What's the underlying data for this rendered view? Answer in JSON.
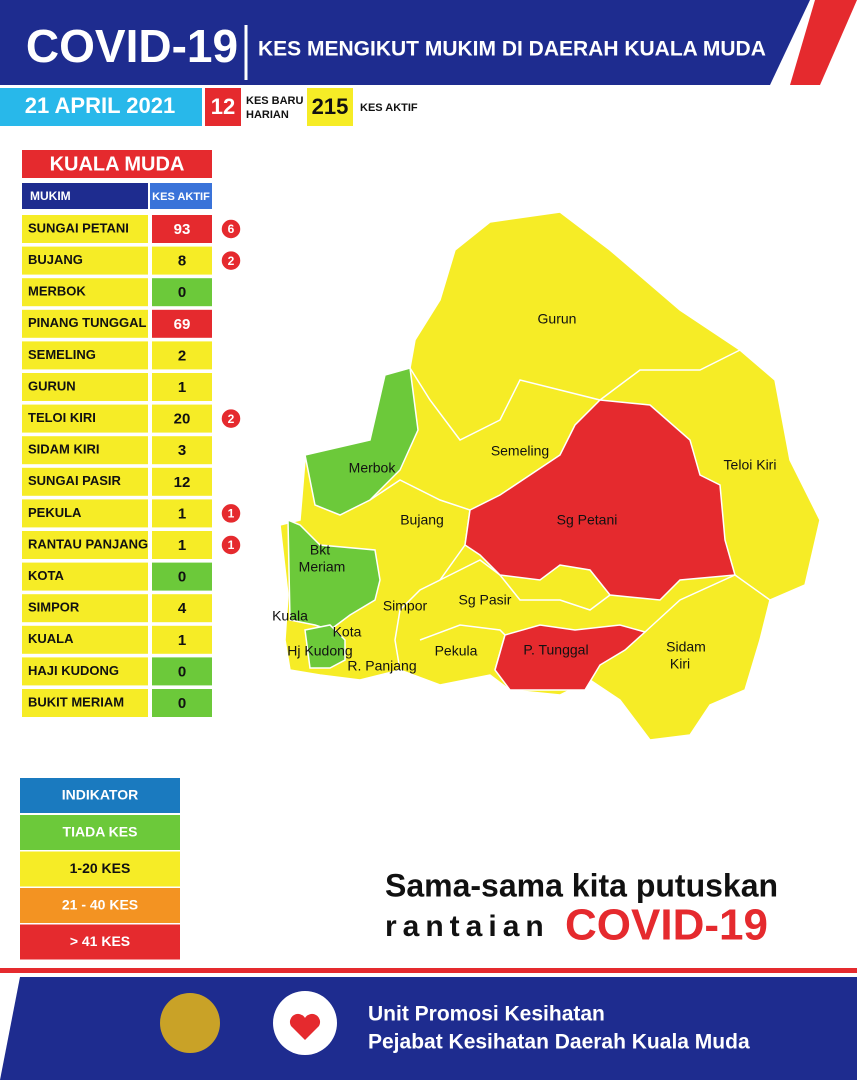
{
  "header": {
    "title": "COVID-19",
    "subtitle": "KES MENGIKUT MUKIM DI DAERAH KUALA MUDA",
    "date": "21 APRIL 2021",
    "new_cases": "12",
    "new_cases_label": [
      "KES BARU",
      "HARIAN"
    ],
    "active_cases": "215",
    "active_cases_label": "KES AKTIF"
  },
  "table": {
    "title": "KUALA MUDA",
    "columns": [
      "MUKIM",
      "KES AKTIF"
    ],
    "rows": [
      {
        "name": "SUNGAI PETANI",
        "active": "93",
        "color": "#e52a2e",
        "new": "6"
      },
      {
        "name": "BUJANG",
        "active": "8",
        "color": "#f6ec26",
        "new": "2"
      },
      {
        "name": "MERBOK",
        "active": "0",
        "color": "#6cc93a"
      },
      {
        "name": "PINANG TUNGGAL",
        "active": "69",
        "color": "#e52a2e"
      },
      {
        "name": "SEMELING",
        "active": "2",
        "color": "#f6ec26"
      },
      {
        "name": "GURUN",
        "active": "1",
        "color": "#f6ec26"
      },
      {
        "name": "TELOI KIRI",
        "active": "20",
        "color": "#f6ec26",
        "new": "2"
      },
      {
        "name": "SIDAM KIRI",
        "active": "3",
        "color": "#f6ec26"
      },
      {
        "name": "SUNGAI PASIR",
        "active": "12",
        "color": "#f6ec26"
      },
      {
        "name": "PEKULA",
        "active": "1",
        "color": "#f6ec26",
        "new": "1"
      },
      {
        "name": "RANTAU PANJANG",
        "active": "1",
        "color": "#f6ec26",
        "new": "1"
      },
      {
        "name": "KOTA",
        "active": "0",
        "color": "#6cc93a"
      },
      {
        "name": "SIMPOR",
        "active": "4",
        "color": "#f6ec26"
      },
      {
        "name": "KUALA",
        "active": "1",
        "color": "#f6ec26"
      },
      {
        "name": "HAJI KUDONG",
        "active": "0",
        "color": "#6cc93a"
      },
      {
        "name": "BUKIT MERIAM",
        "active": "0",
        "color": "#6cc93a"
      }
    ]
  },
  "map": {
    "regions": [
      "Gurun",
      "Semeling",
      "Teloi Kiri",
      "Merbok",
      "Bujang",
      "Sg Petani",
      "Bkt",
      "Meriam",
      "Kuala",
      "Simpor",
      "Sg Pasir",
      "Kota",
      "Hj Kudong",
      "R. Panjang",
      "Pekula",
      "P. Tunggal",
      "Sidam",
      "Kiri"
    ]
  },
  "legend": {
    "title": "INDIKATOR",
    "items": [
      {
        "label": "TIADA KES",
        "color": "#6cc93a"
      },
      {
        "label": "1-20 KES",
        "color": "#f6ec26"
      },
      {
        "label": "21 - 40 KES",
        "color": "#f39322"
      },
      {
        "label": "> 41 KES",
        "color": "#e52a2e"
      }
    ]
  },
  "slogan": {
    "line1": "Sama-sama kita putuskan",
    "line2": "rantaian",
    "highlight": "COVID-19"
  },
  "footer": {
    "line1": "Unit Promosi Kesihatan",
    "line2": "Pejabat Kesihatan Daerah Kuala Muda"
  }
}
